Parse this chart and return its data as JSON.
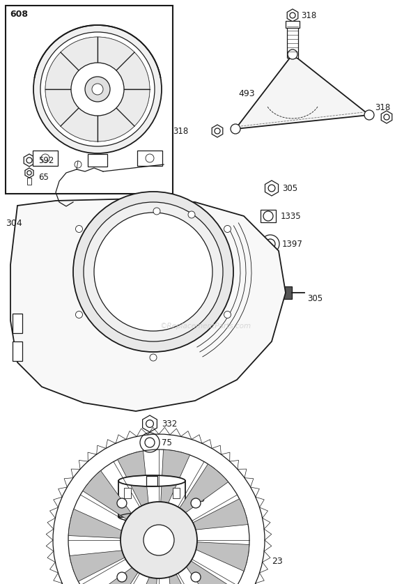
{
  "bg_color": "#ffffff",
  "line_color": "#1a1a1a",
  "watermark_color": "#c8c8c8",
  "watermark_text": "©ReplacementParts.com",
  "figsize": [
    5.9,
    8.38
  ],
  "dpi": 100
}
